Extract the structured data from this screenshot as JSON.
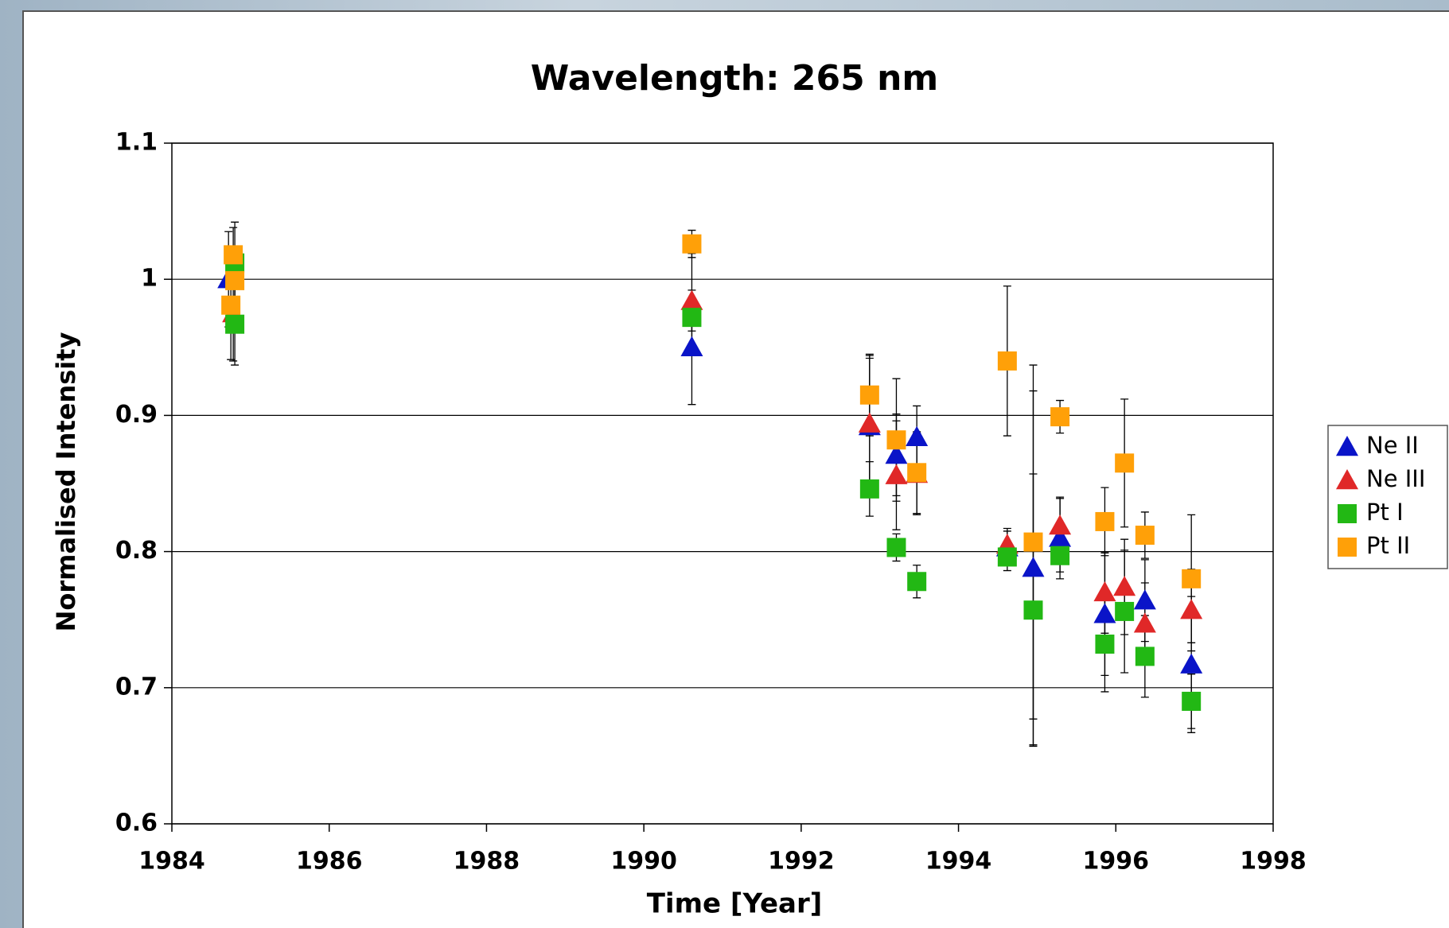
{
  "chart_data": {
    "type": "scatter",
    "title": "Wavelength: 265 nm",
    "x_label": "Time [Year]",
    "y_label": "Normalised Intensity",
    "xlim": [
      1984,
      1998
    ],
    "xticks": [
      1984,
      1986,
      1988,
      1990,
      1992,
      1994,
      1996,
      1998
    ],
    "ylim": [
      0.6,
      1.1
    ],
    "yticks": [
      0.6,
      0.7,
      0.8,
      0.9,
      1,
      1.1
    ],
    "grid": true,
    "legend": "right",
    "series": [
      {
        "name": "Ne II",
        "color": "#0a14c8",
        "marker": "triangle",
        "x": [
          1984.72,
          1990.61,
          1992.87,
          1993.21,
          1993.47,
          1994.62,
          1994.95,
          1995.29,
          1995.86,
          1996.37,
          1996.96
        ],
        "values": [
          1.0,
          0.95,
          0.892,
          0.871,
          0.884,
          0.803,
          0.788,
          0.81,
          0.754,
          0.764,
          0.717
        ],
        "errors": [
          0.035,
          0.042,
          0.05,
          0.03,
          0.023,
          0.012,
          0.13,
          0.03,
          0.045,
          0.03,
          0.05
        ]
      },
      {
        "name": "Ne III",
        "color": "#e02828",
        "marker": "triangle",
        "x": [
          1984.78,
          1990.61,
          1992.87,
          1993.21,
          1993.47,
          1994.62,
          1995.29,
          1995.86,
          1996.11,
          1996.37,
          1996.96
        ],
        "values": [
          0.975,
          0.984,
          0.894,
          0.856,
          0.857,
          0.805,
          0.819,
          0.77,
          0.774,
          0.747,
          0.757
        ],
        "errors": [
          0.035,
          0.035,
          0.05,
          0.04,
          0.03,
          0.012,
          0.02,
          0.03,
          0.035,
          0.03,
          0.03
        ]
      },
      {
        "name": "Pt I",
        "color": "#22b814",
        "marker": "square",
        "x": [
          1984.8,
          1984.8,
          1990.61,
          1992.87,
          1993.21,
          1993.47,
          1994.62,
          1994.95,
          1995.29,
          1995.86,
          1996.11,
          1996.37,
          1996.96
        ],
        "values": [
          1.012,
          0.967,
          0.972,
          0.846,
          0.803,
          0.778,
          0.796,
          0.757,
          0.797,
          0.732,
          0.756,
          0.723,
          0.69
        ],
        "errors": [
          0.03,
          0.03,
          0.01,
          0.02,
          0.01,
          0.012,
          0.01,
          0.1,
          0.012,
          0.035,
          0.045,
          0.03,
          0.02
        ]
      },
      {
        "name": "Pt II",
        "color": "#ffa008",
        "marker": "square",
        "x": [
          1984.78,
          1984.8,
          1984.75,
          1990.61,
          1992.87,
          1993.21,
          1993.47,
          1994.62,
          1994.95,
          1995.29,
          1995.86,
          1996.11,
          1996.37,
          1996.96
        ],
        "values": [
          1.018,
          0.999,
          0.981,
          1.026,
          0.915,
          0.882,
          0.858,
          0.94,
          0.807,
          0.899,
          0.822,
          0.865,
          0.812,
          0.78
        ],
        "errors": [
          0.02,
          0.02,
          0.04,
          0.01,
          0.03,
          0.045,
          0.03,
          0.055,
          0.13,
          0.012,
          0.025,
          0.047,
          0.017,
          0.047
        ]
      }
    ]
  }
}
